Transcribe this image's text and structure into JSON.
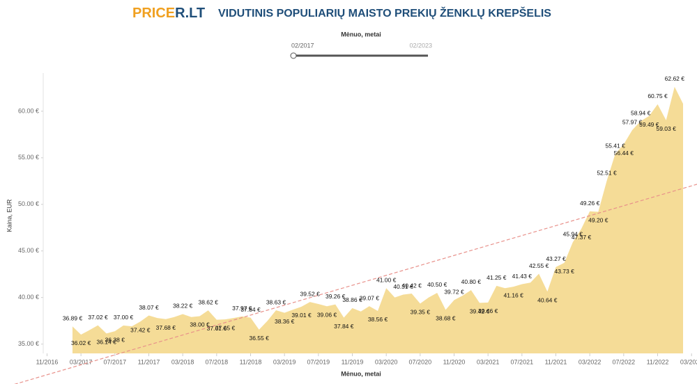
{
  "header": {
    "logo": [
      "PRICE",
      "R.LT"
    ],
    "title": "VIDUTINIS POPULIARIŲ MAISTO PREKIŲ ŽENKLŲ KREPŠELIS"
  },
  "filter": {
    "label": "Mėnuo, metai",
    "from": "02/2017",
    "to": "02/2023"
  },
  "chart_data": {
    "type": "area",
    "x": [
      "02/2017",
      "03/2017",
      "04/2017",
      "05/2017",
      "06/2017",
      "07/2017",
      "08/2017",
      "09/2017",
      "10/2017",
      "11/2017",
      "12/2017",
      "01/2018",
      "02/2018",
      "03/2018",
      "04/2018",
      "05/2018",
      "06/2018",
      "07/2018",
      "08/2018",
      "09/2018",
      "10/2018",
      "11/2018",
      "12/2018",
      "01/2019",
      "02/2019",
      "03/2019",
      "04/2019",
      "05/2019",
      "06/2019",
      "07/2019",
      "08/2019",
      "09/2019",
      "10/2019",
      "11/2019",
      "12/2019",
      "01/2020",
      "02/2020",
      "03/2020",
      "04/2020",
      "05/2020",
      "06/2020",
      "07/2020",
      "08/2020",
      "09/2020",
      "10/2020",
      "11/2020",
      "12/2020",
      "01/2021",
      "02/2021",
      "03/2021",
      "04/2021",
      "05/2021",
      "06/2021",
      "07/2021",
      "08/2021",
      "09/2021",
      "10/2021",
      "11/2021",
      "12/2021",
      "01/2022",
      "02/2022",
      "03/2022",
      "04/2022",
      "05/2022",
      "06/2022",
      "07/2022",
      "08/2022",
      "09/2022",
      "10/2022",
      "11/2022",
      "12/2022",
      "01/2023",
      "02/2023"
    ],
    "series": [
      {
        "name": "Kaina, EUR",
        "color": "#f5dc97",
        "values": [
          36.89,
          36.02,
          36.5,
          37.02,
          36.14,
          36.38,
          37.0,
          36.9,
          37.42,
          38.07,
          37.8,
          37.68,
          37.9,
          38.22,
          37.9,
          38.0,
          38.62,
          37.61,
          37.65,
          37.8,
          37.97,
          37.84,
          36.55,
          37.5,
          38.63,
          38.36,
          38.7,
          39.01,
          39.52,
          39.3,
          39.06,
          39.26,
          37.84,
          38.86,
          38.5,
          39.07,
          38.56,
          41.0,
          40.0,
          40.31,
          40.42,
          39.35,
          40.0,
          40.5,
          38.68,
          39.72,
          40.2,
          40.8,
          39.42,
          39.46,
          41.25,
          41.0,
          41.16,
          41.43,
          41.6,
          42.55,
          40.64,
          43.27,
          43.73,
          45.94,
          47.37,
          49.26,
          49.2,
          52.51,
          55.41,
          56.44,
          57.97,
          58.94,
          59.49,
          60.75,
          59.03,
          62.62,
          60.8
        ],
        "value_labels": [
          "36.89 €",
          "36.02 €",
          null,
          "37.02 €",
          "36.14 €",
          "36.38 €",
          "37.00 €",
          null,
          "37.42 €",
          "38.07 €",
          null,
          "37.68 €",
          null,
          "38.22 €",
          null,
          "38.00 €",
          "38.62 €",
          "37.61 €",
          "37.65 €",
          null,
          "37.97 €",
          "37.84 €",
          "36.55 €",
          null,
          "38.63 €",
          "38.36 €",
          null,
          "39.01 €",
          "39.52 €",
          null,
          "39.06 €",
          "39.26 €",
          "37.84 €",
          "38.86 €",
          null,
          "39.07 €",
          "38.56 €",
          "41.00 €",
          null,
          "40.31 €",
          "40.42 €",
          "39.35 €",
          null,
          "40.50 €",
          "38.68 €",
          "39.72 €",
          null,
          "40.80 €",
          "39.42 €",
          "39.46 €",
          "41.25 €",
          null,
          "41.16 €",
          "41.43 €",
          null,
          "42.55 €",
          "40.64 €",
          "43.27 €",
          "43.73 €",
          "45.94 €",
          "47.37 €",
          "49.26 €",
          "49.20 €",
          "52.51 €",
          "55.41 €",
          "56.44 €",
          "57.97 €",
          "58.94 €",
          "59.49 €",
          "60.75 €",
          "59.03 €",
          "62.62 €",
          null
        ]
      }
    ],
    "xlabel": "Mėnuo, metai",
    "ylabel": "Kaina, EUR",
    "xticks": [
      "11/2016",
      "03/2017",
      "07/2017",
      "11/2017",
      "03/2018",
      "07/2018",
      "11/2018",
      "03/2019",
      "07/2019",
      "11/2019",
      "03/2020",
      "07/2020",
      "11/2020",
      "03/2021",
      "07/2021",
      "11/2021",
      "03/2022",
      "07/2022",
      "11/2022",
      "03/2023"
    ],
    "ylim": [
      34,
      64.1
    ],
    "yticks": [
      {
        "value": 35,
        "label": "35.00 €"
      },
      {
        "value": 40,
        "label": "40.00 €"
      },
      {
        "value": 45,
        "label": "45.00 €"
      },
      {
        "value": 50,
        "label": "50.00 €"
      },
      {
        "value": 55,
        "label": "55.00 €"
      },
      {
        "value": 60,
        "label": "60.00 €"
      }
    ],
    "trendline": true
  }
}
